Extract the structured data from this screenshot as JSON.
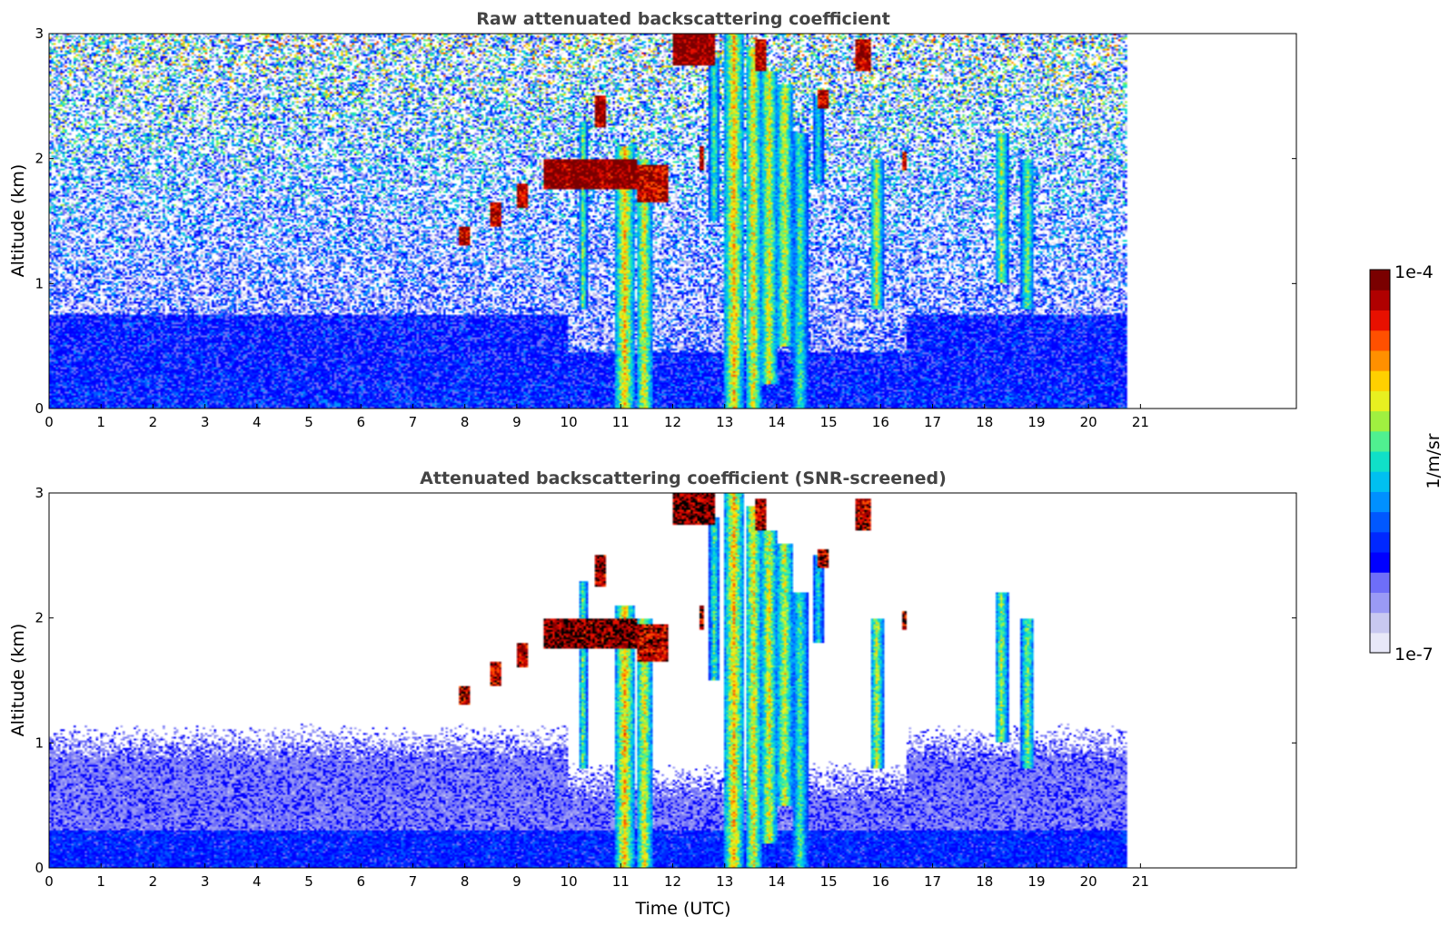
{
  "colors": {
    "colormap": [
      "#e8e8f8",
      "#c8c8f0",
      "#9a9af5",
      "#6e6ef8",
      "#0000ff",
      "#0028ff",
      "#0058ff",
      "#0090ff",
      "#00c0f0",
      "#10e0c8",
      "#50f090",
      "#a0f040",
      "#e8f020",
      "#ffd000",
      "#ff9000",
      "#ff5000",
      "#e81000",
      "#b00000",
      "#7a0000"
    ],
    "over": "#000000",
    "frame": "#000000",
    "title": "#444444"
  },
  "colorbar": {
    "label": "1/m/sr",
    "max_label": "1e-4",
    "min_label": "1e-7"
  },
  "chart_data": [
    {
      "type": "heatmap",
      "title": "Raw attenuated backscattering coefficient",
      "xlabel": "",
      "ylabel": "Altitude (km)",
      "xlim": [
        0,
        24
      ],
      "ylim": [
        0,
        3
      ],
      "data_extent_x": [
        0,
        20.75
      ],
      "x_ticks": [
        "0",
        "1",
        "2",
        "3",
        "4",
        "5",
        "6",
        "7",
        "8",
        "9",
        "10",
        "11",
        "12",
        "13",
        "14",
        "15",
        "16",
        "17",
        "18",
        "19",
        "20",
        "21"
      ],
      "y_ticks": [
        "0",
        "1",
        "2",
        "3"
      ],
      "color_scale": "log",
      "crange": [
        "1e-7",
        "1e-4"
      ],
      "screened": false
    },
    {
      "type": "heatmap",
      "title": "Attenuated backscattering coefficient (SNR-screened)",
      "xlabel": "Time (UTC)",
      "ylabel": "Altitude (km)",
      "xlim": [
        0,
        24
      ],
      "ylim": [
        0,
        3
      ],
      "data_extent_x": [
        0,
        20.75
      ],
      "x_ticks": [
        "0",
        "1",
        "2",
        "3",
        "4",
        "5",
        "6",
        "7",
        "8",
        "9",
        "10",
        "11",
        "12",
        "13",
        "14",
        "15",
        "16",
        "17",
        "18",
        "19",
        "20",
        "21"
      ],
      "y_ticks": [
        "0",
        "1",
        "2",
        "3"
      ],
      "color_scale": "log",
      "crange": [
        "1e-7",
        "1e-4"
      ],
      "screened": true
    }
  ]
}
